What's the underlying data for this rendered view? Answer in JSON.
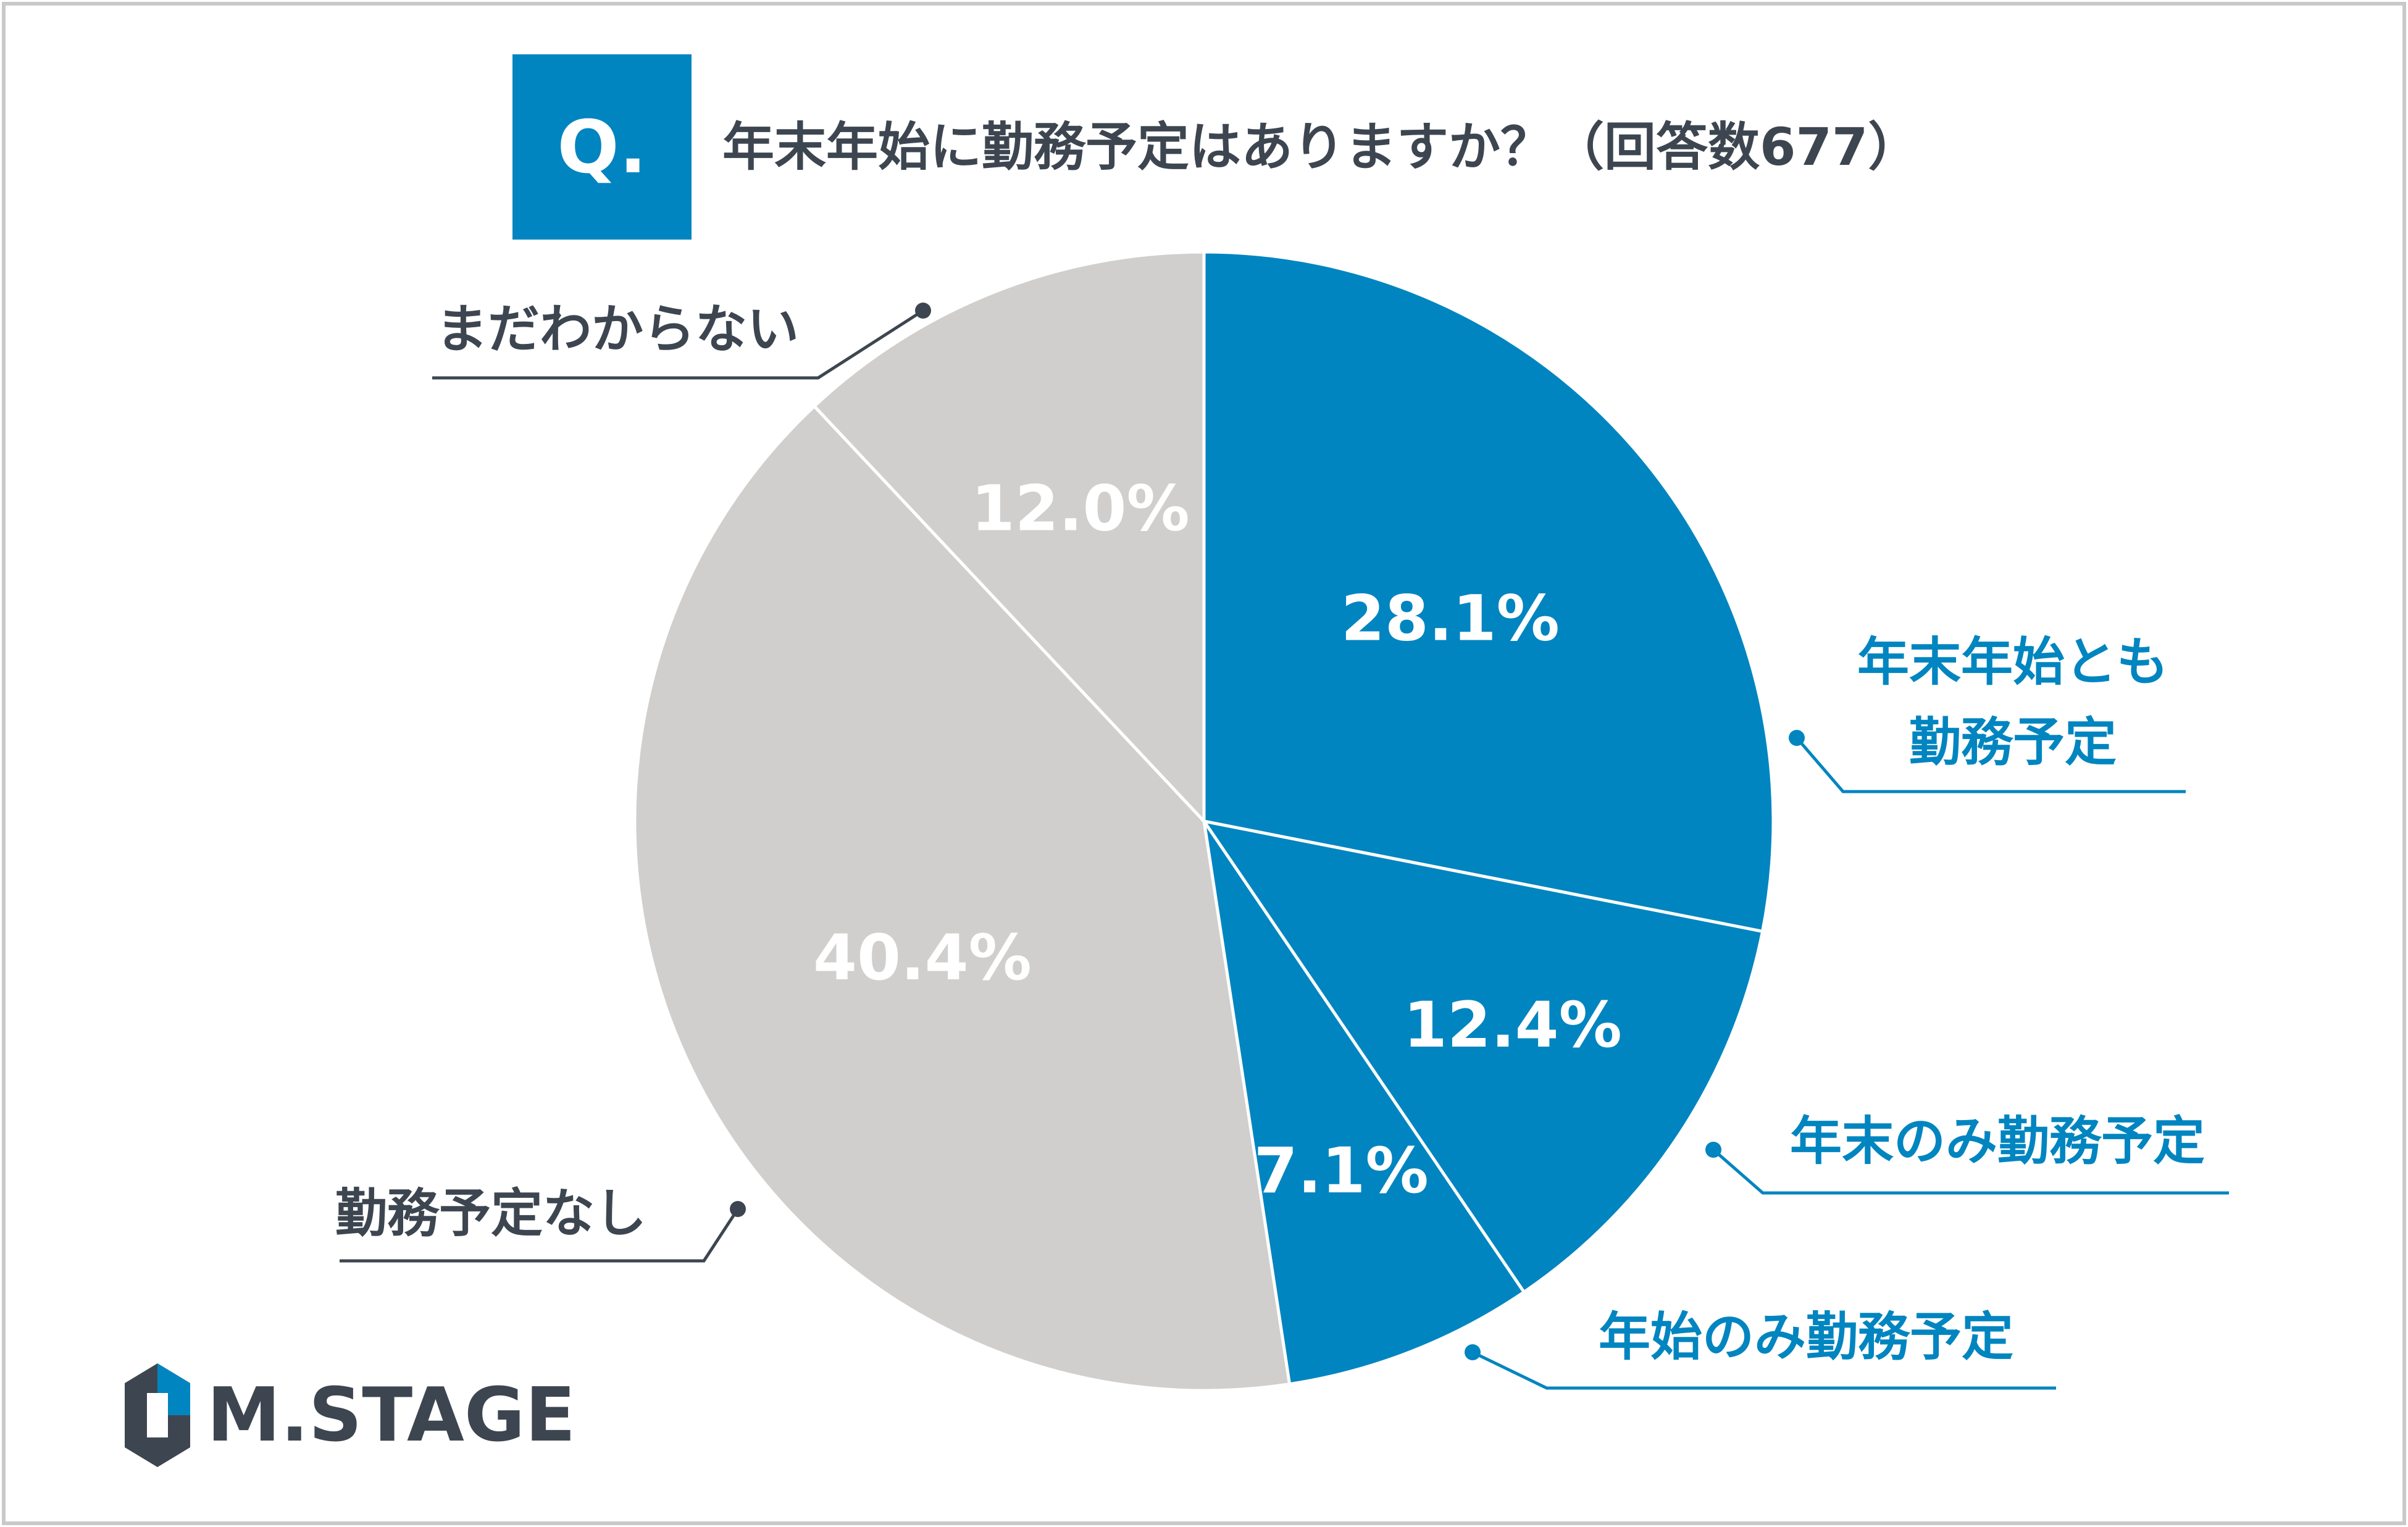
{
  "header": {
    "badge": "Q.",
    "question": "年末年始に勤務予定はありますか？（回答数677）"
  },
  "chart_data": {
    "type": "pie",
    "start_angle_deg": 0,
    "direction": "clockwise",
    "slices": [
      {
        "label_lines": [
          "年末年始とも",
          "勤務予定"
        ],
        "value": 28.1,
        "value_label": "28.1%",
        "color": "#0085c0",
        "label_color": "#0085c0",
        "leader_color": "#0085c0"
      },
      {
        "label_lines": [
          "年末のみ勤務予定"
        ],
        "value": 12.4,
        "value_label": "12.4%",
        "color": "#0085c0",
        "label_color": "#0085c0",
        "leader_color": "#0085c0"
      },
      {
        "label_lines": [
          "年始のみ勤務予定"
        ],
        "value": 7.1,
        "value_label": "7.1%",
        "color": "#0085c0",
        "label_color": "#0085c0",
        "leader_color": "#0085c0"
      },
      {
        "label_lines": [
          "勤務予定なし"
        ],
        "value": 40.4,
        "value_label": "40.4%",
        "color": "#d0cfcd",
        "label_color": "#3d4650",
        "leader_color": "#3d4650"
      },
      {
        "label_lines": [
          "まだわからない"
        ],
        "value": 12.0,
        "value_label": "12.0%",
        "color": "#d0cfcd",
        "label_color": "#3d4650",
        "leader_color": "#3d4650"
      }
    ]
  },
  "brand": {
    "name": "M.STAGE",
    "color": "#3d4650",
    "accent": "#0085c0"
  },
  "colors": {
    "badge": "#0085c0",
    "frame": "#c9c9c9",
    "value_text": "#ffffff"
  }
}
